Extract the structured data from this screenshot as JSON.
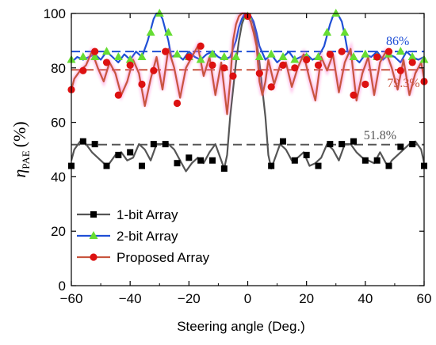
{
  "chart_data": {
    "type": "line",
    "xlabel": "Steering angle (Deg.)",
    "ylabel_symbol": "η",
    "ylabel_subscript": "PAE",
    "ylabel_unit": "(%)",
    "xlim": [
      -60,
      60
    ],
    "ylim": [
      0,
      100
    ],
    "xticks": [
      -60,
      -40,
      -20,
      0,
      20,
      40,
      60
    ],
    "yticks": [
      0,
      20,
      40,
      60,
      80,
      100
    ],
    "grid": false,
    "legend_position": "bottom-left",
    "series": [
      {
        "name": "1-bit Array",
        "color": "#555555",
        "marker": "square",
        "marker_color": "#000000",
        "x": [
          -60,
          -59,
          -57,
          -55,
          -53,
          -51,
          -49,
          -48,
          -47,
          -45,
          -43,
          -41,
          -39,
          -37,
          -35,
          -33,
          -31,
          -29,
          -27,
          -25,
          -23,
          -21,
          -19,
          -17,
          -15,
          -13,
          -11,
          -9,
          -8,
          -7,
          -6,
          -5,
          -4,
          -3,
          -2,
          -1,
          0,
          1,
          2,
          3,
          4,
          5,
          6,
          7,
          8,
          9,
          11,
          13,
          15,
          17,
          19,
          21,
          23,
          25,
          27,
          29,
          31,
          33,
          35,
          37,
          39,
          41,
          43,
          45,
          47,
          48,
          49,
          51,
          53,
          55,
          57,
          59,
          60
        ],
        "y": [
          46,
          50,
          53,
          52,
          49,
          47,
          45,
          44,
          45,
          48,
          49,
          46,
          47,
          52,
          50,
          46,
          52,
          52,
          52,
          50,
          46,
          42,
          45,
          47,
          45,
          49,
          52,
          46,
          43,
          48,
          62,
          72,
          82,
          90,
          96,
          99,
          99,
          99,
          96,
          90,
          82,
          72,
          62,
          48,
          43,
          46,
          52,
          50,
          46,
          47,
          49,
          44,
          45,
          47,
          52,
          50,
          46,
          52,
          52,
          49,
          47,
          46,
          45,
          49,
          45,
          44,
          46,
          48,
          50,
          52,
          53,
          50,
          45
        ],
        "marker_x": [
          -60,
          -56,
          -52,
          -48,
          -44,
          -40,
          -36,
          -32,
          -28,
          -24,
          -20,
          -16,
          -12,
          -8,
          0,
          8,
          12,
          16,
          20,
          24,
          28,
          32,
          36,
          40,
          44,
          48,
          52,
          56,
          60
        ],
        "marker_y": [
          44,
          53,
          52,
          44,
          48,
          49,
          44,
          52,
          52,
          45,
          47,
          46,
          46,
          43,
          99,
          44,
          53,
          46,
          48,
          44,
          52,
          52,
          53,
          46,
          46,
          44,
          51,
          52,
          44
        ]
      },
      {
        "name": "2-bit Array",
        "color": "#1f4fd6",
        "marker": "triangle",
        "marker_color": "#66dd33",
        "x": [
          -60,
          -58,
          -56,
          -54,
          -52,
          -50,
          -48,
          -46,
          -44,
          -42,
          -40,
          -38,
          -36,
          -34,
          -33,
          -32,
          -31,
          -30,
          -29,
          -28,
          -27,
          -26,
          -24,
          -22,
          -20,
          -18,
          -16,
          -14,
          -12,
          -10,
          -8,
          -6,
          -4,
          -3,
          -2,
          -1,
          0,
          1,
          2,
          3,
          4,
          6,
          8,
          10,
          12,
          14,
          16,
          18,
          20,
          22,
          24,
          26,
          27,
          28,
          29,
          30,
          31,
          32,
          33,
          34,
          36,
          38,
          40,
          42,
          44,
          46,
          48,
          50,
          52,
          54,
          56,
          58,
          60
        ],
        "y": [
          82,
          84,
          83,
          84,
          85,
          83,
          86,
          84,
          82,
          85,
          83,
          86,
          84,
          90,
          94,
          98,
          100,
          100,
          98,
          94,
          90,
          84,
          85,
          83,
          86,
          84,
          83,
          85,
          86,
          84,
          83,
          84,
          90,
          95,
          98,
          100,
          100,
          99,
          97,
          93,
          88,
          83,
          85,
          82,
          84,
          86,
          83,
          84,
          85,
          83,
          84,
          88,
          92,
          96,
          99,
          100,
          99,
          97,
          92,
          86,
          84,
          82,
          85,
          84,
          86,
          83,
          85,
          84,
          82,
          86,
          84,
          83,
          84
        ],
        "marker_x": [
          -60,
          -56,
          -52,
          -48,
          -44,
          -40,
          -36,
          -33,
          -30,
          -27,
          -24,
          -20,
          -16,
          -12,
          -8,
          -4,
          0,
          4,
          8,
          12,
          16,
          20,
          24,
          27,
          30,
          33,
          36,
          40,
          44,
          48,
          52,
          56,
          60
        ],
        "marker_y": [
          83,
          84,
          84,
          86,
          84,
          83,
          84,
          93,
          100,
          93,
          85,
          84,
          83,
          85,
          84,
          84,
          99,
          84,
          85,
          84,
          83,
          84,
          84,
          93,
          100,
          93,
          84,
          85,
          84,
          85,
          86,
          84,
          83
        ]
      },
      {
        "name": "Proposed Array",
        "color": "#c8553f",
        "marker": "circle",
        "marker_color": "#dd1111",
        "x": [
          -60,
          -59,
          -57,
          -55,
          -53,
          -51,
          -49,
          -47,
          -45,
          -43,
          -41,
          -39,
          -37,
          -35,
          -33,
          -31,
          -29,
          -27,
          -25,
          -23,
          -21,
          -19,
          -17,
          -15,
          -13,
          -11,
          -9,
          -7,
          -6,
          -5,
          -4,
          -3,
          -2,
          -1,
          0,
          1,
          2,
          3,
          4,
          5,
          6,
          7,
          9,
          11,
          13,
          15,
          17,
          19,
          21,
          23,
          25,
          27,
          29,
          31,
          33,
          35,
          37,
          39,
          41,
          43,
          45,
          47,
          49,
          51,
          53,
          55,
          57,
          59,
          60
        ],
        "y": [
          72,
          76,
          79,
          81,
          86,
          80,
          75,
          82,
          78,
          70,
          75,
          83,
          78,
          66,
          76,
          84,
          72,
          87,
          80,
          69,
          80,
          84,
          88,
          77,
          84,
          70,
          82,
          63,
          75,
          90,
          96,
          99,
          100,
          100,
          99,
          97,
          93,
          88,
          75,
          70,
          75,
          83,
          74,
          81,
          82,
          73,
          80,
          85,
          76,
          68,
          84,
          79,
          85,
          71,
          82,
          87,
          68,
          78,
          84,
          70,
          82,
          86,
          80,
          72,
          83,
          70,
          78,
          82,
          76
        ],
        "marker_x": [
          -60,
          -56,
          -52,
          -48,
          -44,
          -40,
          -36,
          -32,
          -28,
          -24,
          -20,
          -16,
          -12,
          -8,
          -5,
          0,
          4,
          8,
          12,
          16,
          20,
          24,
          28,
          32,
          36,
          40,
          44,
          48,
          52,
          56,
          60
        ],
        "marker_y": [
          72,
          79,
          86,
          82,
          70,
          81,
          74,
          79,
          86,
          67,
          84,
          88,
          81,
          80,
          77,
          99,
          78,
          73,
          81,
          80,
          83,
          81,
          85,
          86,
          70,
          74,
          84,
          86,
          79,
          82,
          75
        ]
      }
    ],
    "reference_lines": [
      {
        "series": "1-bit Array",
        "y": 51.8,
        "label": "51.8%",
        "color": "#555555"
      },
      {
        "series": "2-bit Array",
        "y": 86,
        "label": "86%",
        "color": "#1f4fd6"
      },
      {
        "series": "Proposed Array",
        "y": 79.3,
        "label": "79.3%",
        "color": "#c8553f"
      }
    ]
  }
}
